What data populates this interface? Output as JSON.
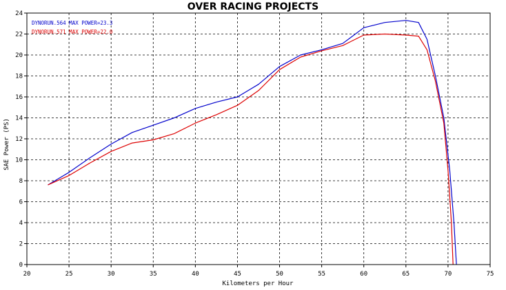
{
  "chart_data": {
    "type": "line",
    "title": "OVER RACING PROJECTS",
    "xlabel": "Kilometers per Hour",
    "ylabel": "SAE Power (PS)",
    "xlim": [
      20,
      75
    ],
    "ylim": [
      0,
      24
    ],
    "x_ticks": [
      20,
      25,
      30,
      35,
      40,
      45,
      50,
      55,
      60,
      65,
      70,
      75
    ],
    "y_ticks": [
      0,
      2,
      4,
      6,
      8,
      10,
      12,
      14,
      16,
      18,
      20,
      22,
      24
    ],
    "grid": true,
    "legend_position": "top-left",
    "series": [
      {
        "name": "DYNORUN.564",
        "legend_text": "DYNORUN.564  MAX POWER=23.3",
        "color": "#0000cc",
        "x": [
          22.5,
          25,
          27.5,
          30,
          32.5,
          35,
          37.5,
          40,
          42.5,
          45,
          47.5,
          50,
          52.5,
          55,
          57.5,
          60,
          62.5,
          65,
          66.5,
          67.5,
          68.5,
          69.5,
          70.2,
          70.7,
          71
        ],
        "y": [
          7.6,
          8.8,
          10.2,
          11.5,
          12.6,
          13.3,
          14.0,
          14.9,
          15.5,
          16.0,
          17.2,
          18.9,
          20.0,
          20.5,
          21.1,
          22.6,
          23.1,
          23.3,
          23.1,
          21.5,
          18.0,
          14.0,
          9.0,
          4.0,
          0
        ]
      },
      {
        "name": "DYNORUN.571",
        "legend_text": "DYNORUN.571  MAX POWER=22.0",
        "color": "#dd0000",
        "x": [
          22.5,
          25,
          27.5,
          30,
          32.5,
          35,
          37.5,
          40,
          42.5,
          45,
          47.5,
          50,
          52.5,
          55,
          57.5,
          60,
          62.5,
          65,
          66.5,
          67.5,
          68.5,
          69.5,
          70,
          70.4,
          70.6
        ],
        "y": [
          7.6,
          8.5,
          9.7,
          10.8,
          11.6,
          11.9,
          12.5,
          13.5,
          14.3,
          15.2,
          16.6,
          18.6,
          19.8,
          20.4,
          20.9,
          21.9,
          22.0,
          21.9,
          21.8,
          20.5,
          17.5,
          13.5,
          9.0,
          4.0,
          0
        ]
      }
    ]
  }
}
